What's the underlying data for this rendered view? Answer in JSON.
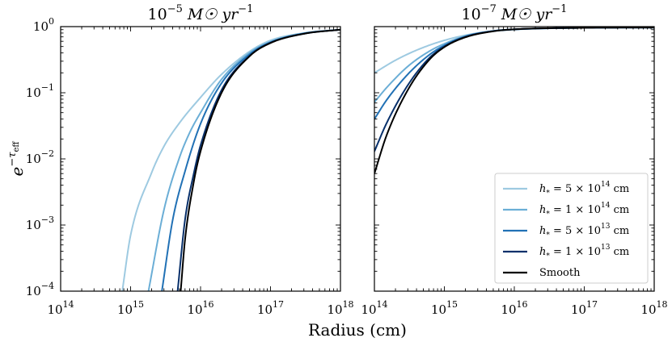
{
  "chart_data": [
    {
      "type": "line",
      "title": "10⁻⁵ M☉ yr⁻¹",
      "title_parts": {
        "base": "10",
        "exp": "−5",
        "rest": " M☉ yr",
        "rest_exp": "−1"
      },
      "xlabel": "Radius (cm)",
      "ylabel": "e^{−τ_eff}",
      "ylabel_parts": {
        "base": "e",
        "exp": "−τ",
        "sub": "eff"
      },
      "xscale": "log",
      "yscale": "log",
      "xlim": [
        100000000000000.0,
        1e+18
      ],
      "ylim": [
        0.0001,
        1
      ],
      "xtick_labels": [
        {
          "base": "10",
          "exp": "14",
          "value": 100000000000000.0
        },
        {
          "base": "10",
          "exp": "15",
          "value": 1000000000000000.0
        },
        {
          "base": "10",
          "exp": "16",
          "value": 1e+16
        },
        {
          "base": "10",
          "exp": "17",
          "value": 1e+17
        },
        {
          "base": "10",
          "exp": "18",
          "value": 1e+18
        }
      ],
      "ytick_labels": [
        {
          "base": "10",
          "exp": "−4",
          "value": 0.0001
        },
        {
          "base": "10",
          "exp": "−3",
          "value": 0.001
        },
        {
          "base": "10",
          "exp": "−2",
          "value": 0.01
        },
        {
          "base": "10",
          "exp": "−1",
          "value": 0.1
        },
        {
          "base": "10",
          "exp": "0",
          "value": 1
        }
      ],
      "series": [
        {
          "name": "h* = 5 × 10^14 cm",
          "color": "#9ecae1",
          "x": [
            760000000000000.0,
            1000000000000000.0,
            2000000000000000.0,
            3000000000000000.0,
            5000000000000000.0,
            1e+16,
            2e+16,
            5e+16,
            1e+17,
            3e+17,
            1e+18
          ],
          "y": [
            0.0001,
            0.0007,
            0.0062,
            0.0155,
            0.035,
            0.085,
            0.19,
            0.42,
            0.62,
            0.8,
            0.9
          ]
        },
        {
          "name": "h* = 1 × 10^14 cm",
          "color": "#6baed6",
          "x": [
            1800000000000000.0,
            3000000000000000.0,
            5000000000000000.0,
            7000000000000000.0,
            1e+16,
            2e+16,
            5e+16,
            1e+17,
            3e+17,
            1e+18
          ],
          "y": [
            0.0001,
            0.0017,
            0.0105,
            0.025,
            0.05,
            0.16,
            0.4,
            0.59,
            0.79,
            0.9
          ]
        },
        {
          "name": "h* = 5 × 10^13 cm",
          "color": "#2171b5",
          "x": [
            2800000000000000.0,
            4000000000000000.0,
            6000000000000000.0,
            1e+16,
            2e+16,
            5e+16,
            1e+17,
            3e+17,
            1e+18
          ],
          "y": [
            0.0001,
            0.0012,
            0.0065,
            0.034,
            0.14,
            0.38,
            0.58,
            0.79,
            0.9
          ]
        },
        {
          "name": "h* = 1 × 10^13 cm",
          "color": "#08306b",
          "x": [
            4700000000000000.0,
            6000000000000000.0,
            8000000000000000.0,
            1e+16,
            2e+16,
            5e+16,
            1e+17,
            3e+17,
            1e+18
          ],
          "y": [
            0.0001,
            0.0012,
            0.006,
            0.016,
            0.11,
            0.36,
            0.57,
            0.78,
            0.9
          ]
        },
        {
          "name": "Smooth",
          "color": "#000000",
          "x": [
            5200000000000000.0,
            6000000000000000.0,
            8000000000000000.0,
            1e+16,
            2e+16,
            5e+16,
            1e+17,
            3e+17,
            1e+18
          ],
          "y": [
            0.0001,
            0.0006,
            0.0045,
            0.013,
            0.1,
            0.355,
            0.565,
            0.78,
            0.9
          ]
        }
      ]
    },
    {
      "type": "line",
      "title": "10⁻⁷ M☉ yr⁻¹",
      "title_parts": {
        "base": "10",
        "exp": "−7",
        "rest": " M☉ yr",
        "rest_exp": "−1"
      },
      "xlabel": "Radius (cm)",
      "xscale": "log",
      "yscale": "log",
      "xlim": [
        100000000000000.0,
        1e+18
      ],
      "ylim": [
        0.0001,
        1
      ],
      "xtick_labels": [
        {
          "base": "10",
          "exp": "14",
          "value": 100000000000000.0
        },
        {
          "base": "10",
          "exp": "15",
          "value": 1000000000000000.0
        },
        {
          "base": "10",
          "exp": "16",
          "value": 1e+16
        },
        {
          "base": "10",
          "exp": "17",
          "value": 1e+17
        },
        {
          "base": "10",
          "exp": "18",
          "value": 1e+18
        }
      ],
      "series": [
        {
          "name": "h* = 5 × 10^14 cm",
          "color": "#9ecae1",
          "x": [
            100000000000000.0,
            200000000000000.0,
            400000000000000.0,
            1000000000000000.0,
            3000000000000000.0,
            1e+16,
            1e+17,
            1e+18
          ],
          "y": [
            0.2,
            0.31,
            0.44,
            0.62,
            0.8,
            0.9,
            0.96,
            0.97
          ]
        },
        {
          "name": "h* = 1 × 10^14 cm",
          "color": "#6baed6",
          "x": [
            100000000000000.0,
            150000000000000.0,
            300000000000000.0,
            600000000000000.0,
            1000000000000000.0,
            2000000000000000.0,
            5000000000000000.0,
            1e+16,
            1e+17,
            1e+18
          ],
          "y": [
            0.072,
            0.12,
            0.25,
            0.42,
            0.55,
            0.72,
            0.86,
            0.91,
            0.96,
            0.97
          ]
        },
        {
          "name": "h* = 5 × 10^13 cm",
          "color": "#2171b5",
          "x": [
            100000000000000.0,
            150000000000000.0,
            300000000000000.0,
            600000000000000.0,
            1000000000000000.0,
            2000000000000000.0,
            5000000000000000.0,
            1e+16,
            1e+17,
            1e+18
          ],
          "y": [
            0.04,
            0.078,
            0.19,
            0.37,
            0.52,
            0.71,
            0.86,
            0.91,
            0.96,
            0.97
          ]
        },
        {
          "name": "h* = 1 × 10^13 cm",
          "color": "#08306b",
          "x": [
            100000000000000.0,
            150000000000000.0,
            300000000000000.0,
            600000000000000.0,
            1000000000000000.0,
            2000000000000000.0,
            5000000000000000.0,
            1e+16,
            1e+17,
            1e+18
          ],
          "y": [
            0.013,
            0.035,
            0.13,
            0.33,
            0.5,
            0.7,
            0.855,
            0.91,
            0.96,
            0.97
          ]
        },
        {
          "name": "Smooth",
          "color": "#000000",
          "x": [
            100000000000000.0,
            150000000000000.0,
            300000000000000.0,
            600000000000000.0,
            1000000000000000.0,
            2000000000000000.0,
            5000000000000000.0,
            1e+16,
            1e+17,
            1e+18
          ],
          "y": [
            0.006,
            0.023,
            0.11,
            0.31,
            0.49,
            0.69,
            0.85,
            0.91,
            0.96,
            0.97
          ]
        }
      ]
    }
  ],
  "legend": {
    "location": "lower-right of right panel",
    "entries": [
      {
        "color": "#9ecae1",
        "prefix": "h",
        "sub": "*",
        "mid": " = 5 × 10",
        "exp": "14",
        "unit": " cm"
      },
      {
        "color": "#6baed6",
        "prefix": "h",
        "sub": "*",
        "mid": " = 1 × 10",
        "exp": "14",
        "unit": " cm"
      },
      {
        "color": "#2171b5",
        "prefix": "h",
        "sub": "*",
        "mid": " = 5 × 10",
        "exp": "13",
        "unit": " cm"
      },
      {
        "color": "#08306b",
        "prefix": "h",
        "sub": "*",
        "mid": " = 1 × 10",
        "exp": "13",
        "unit": " cm"
      },
      {
        "color": "#000000",
        "label": "Smooth"
      }
    ]
  }
}
